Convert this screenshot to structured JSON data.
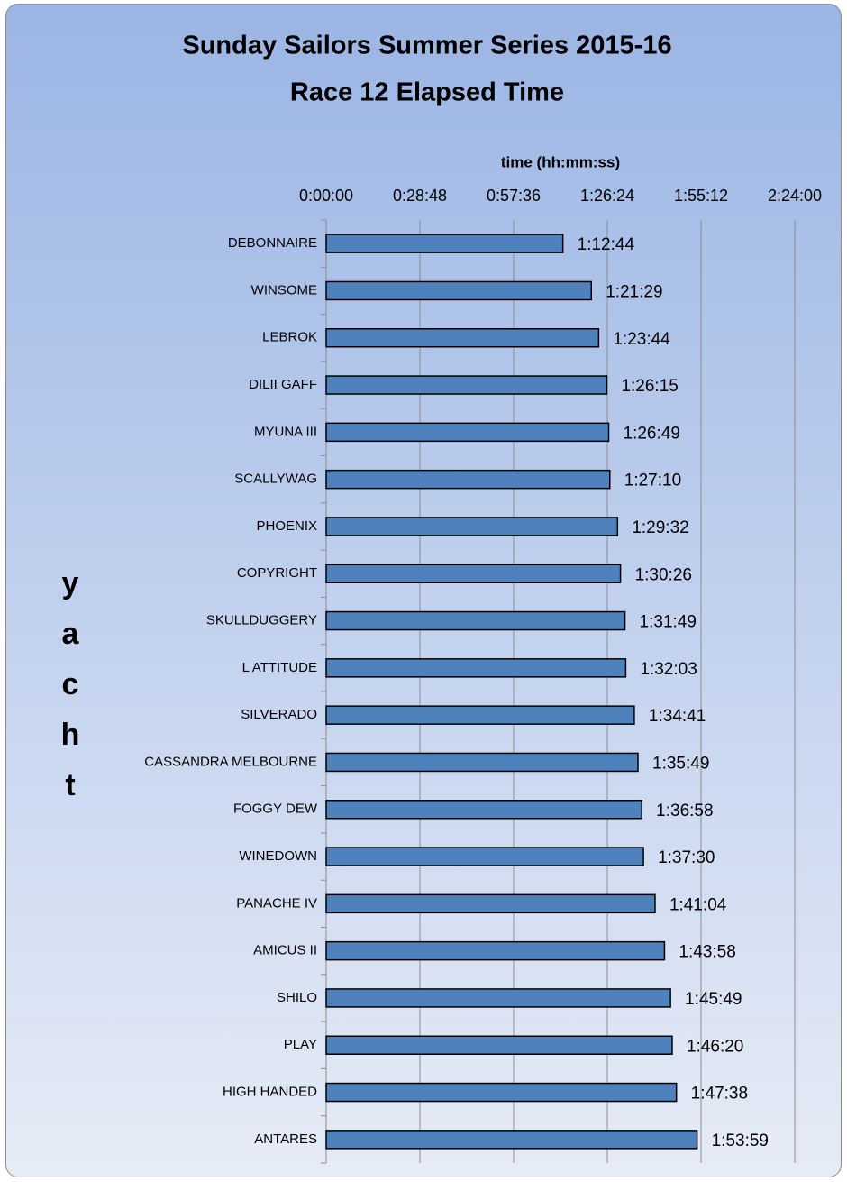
{
  "chart_data": {
    "type": "bar",
    "orientation": "horizontal",
    "title": "Sunday Sailors Summer Series 2015-16",
    "subtitle": "Race 12 Elapsed Time",
    "x_label": "time (hh:mm:ss)",
    "y_label": "yacht",
    "categories": [
      "DEBONNAIRE",
      "WINSOME",
      "LEBROK",
      "DILII GAFF",
      "MYUNA III",
      "SCALLYWAG",
      "PHOENIX",
      "COPYRIGHT",
      "SKULLDUGGERY",
      "L ATTITUDE",
      "SILVERADO",
      "CASSANDRA MELBOURNE",
      "FOGGY DEW",
      "WINEDOWN",
      "PANACHE IV",
      "AMICUS II",
      "SHILO",
      "PLAY",
      "HIGH HANDED",
      "ANTARES"
    ],
    "values": [
      4364,
      4889,
      5024,
      5175,
      5209,
      5230,
      5372,
      5426,
      5509,
      5523,
      5681,
      5749,
      5818,
      5850,
      6064,
      6238,
      6349,
      6380,
      6458,
      6839
    ],
    "value_labels": [
      "1:12:44",
      "1:21:29",
      "1:23:44",
      "1:26:15",
      "1:26:49",
      "1:27:10",
      "1:29:32",
      "1:30:26",
      "1:31:49",
      "1:32:03",
      "1:34:41",
      "1:35:49",
      "1:36:58",
      "1:37:30",
      "1:41:04",
      "1:43:58",
      "1:45:49",
      "1:46:20",
      "1:47:38",
      "1:53:59"
    ],
    "color": "#4f81bd",
    "xlim": [
      0,
      8640
    ],
    "xticks": [
      {
        "value": 0,
        "label": "0:00:00"
      },
      {
        "value": 1728,
        "label": "0:28:48"
      },
      {
        "value": 3456,
        "label": "0:57:36"
      },
      {
        "value": 5184,
        "label": "1:26:24"
      },
      {
        "value": 6912,
        "label": "1:55:12"
      },
      {
        "value": 8640,
        "label": "2:24:00"
      }
    ],
    "grid": true
  }
}
